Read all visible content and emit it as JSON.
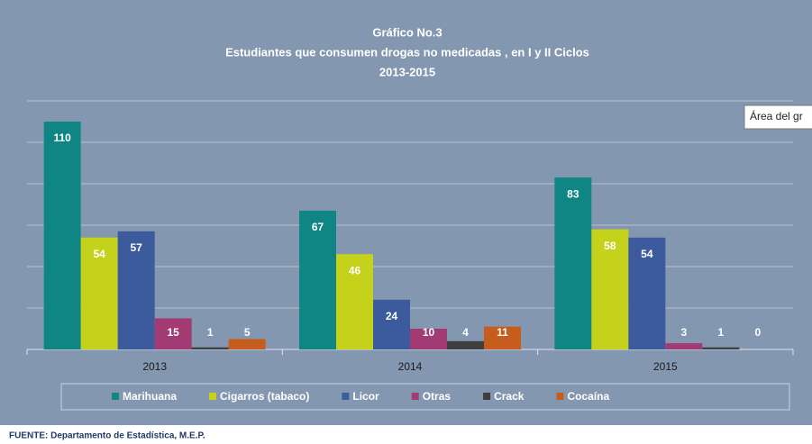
{
  "chart_data": {
    "type": "bar",
    "title": [
      "Gráfico No.3",
      "Estudiantes que consumen drogas no medicadas , en I y II Ciclos",
      "2013-2015"
    ],
    "categories": [
      "2013",
      "2014",
      "2015"
    ],
    "series": [
      {
        "name": "Marihuana",
        "color": "#0f8684",
        "values": [
          110,
          67,
          83
        ]
      },
      {
        "name": "Cigarros (tabaco)",
        "color": "#c4d21c",
        "values": [
          54,
          46,
          58
        ]
      },
      {
        "name": "Licor",
        "color": "#3b5b9d",
        "values": [
          57,
          24,
          54
        ]
      },
      {
        "name": "Otras",
        "color": "#a23b73",
        "values": [
          15,
          10,
          3
        ]
      },
      {
        "name": "Crack",
        "color": "#3f3f3f",
        "values": [
          1,
          4,
          1
        ]
      },
      {
        "name": "Cocaína",
        "color": "#c65d1c",
        "values": [
          5,
          11,
          0
        ]
      }
    ],
    "ylim": [
      0,
      120
    ],
    "yticks": [
      0,
      20,
      40,
      60,
      80,
      100,
      120
    ],
    "grid": true,
    "legend": "bottom",
    "source": "FUENTE: Departamento de Estadística, M.E.P.",
    "tooltip": "Área del gr"
  }
}
